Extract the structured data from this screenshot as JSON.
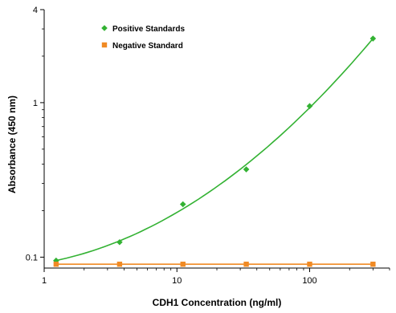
{
  "chart_data": {
    "type": "scatter",
    "title": "",
    "xlabel": "CDH1 Concentration (ng/ml)",
    "ylabel": "Absorbance (450 nm)",
    "x_scale": "log",
    "y_scale": "log",
    "xlim": [
      1,
      400
    ],
    "ylim": [
      0.085,
      4
    ],
    "x_ticks": [
      1,
      10,
      100
    ],
    "x_tick_labels": [
      "1",
      "10",
      "100"
    ],
    "y_ticks": [
      0.1,
      1,
      4
    ],
    "y_tick_labels": [
      "0.1",
      "1",
      "4"
    ],
    "grid": false,
    "legend_position": "top-left",
    "series": [
      {
        "name": "Positive Standards",
        "color": "#33b233",
        "marker": "diamond",
        "fit_curve": true,
        "points": [
          {
            "x": 1.23,
            "y": 0.095
          },
          {
            "x": 3.7,
            "y": 0.125
          },
          {
            "x": 11.1,
            "y": 0.22
          },
          {
            "x": 33.3,
            "y": 0.37
          },
          {
            "x": 100,
            "y": 0.95
          },
          {
            "x": 300,
            "y": 2.6
          }
        ]
      },
      {
        "name": "Negative Standard",
        "color": "#f08a24",
        "marker": "square",
        "fit_curve": false,
        "points": [
          {
            "x": 1.23,
            "y": 0.09
          },
          {
            "x": 3.7,
            "y": 0.09
          },
          {
            "x": 11.1,
            "y": 0.09
          },
          {
            "x": 33.3,
            "y": 0.09
          },
          {
            "x": 100,
            "y": 0.09
          },
          {
            "x": 300,
            "y": 0.09
          }
        ]
      }
    ]
  }
}
